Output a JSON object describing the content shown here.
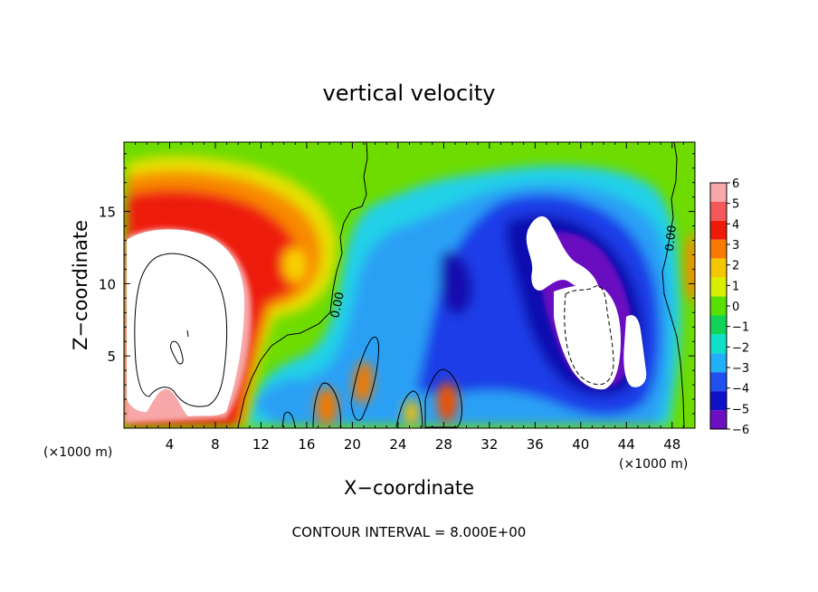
{
  "chart_data": {
    "type": "heatmap",
    "title": "vertical velocity",
    "xlabel": "X−coordinate",
    "ylabel": "Z−coordinate",
    "x_unit_label": "(×1000 m)",
    "y_unit_label": "(×1000 m)",
    "xlim": [
      0,
      50
    ],
    "ylim": [
      0,
      19.8
    ],
    "x_ticks": [
      4,
      8,
      12,
      16,
      20,
      24,
      28,
      32,
      36,
      40,
      44,
      48
    ],
    "x_tick_labels": [
      "4",
      "8",
      "12",
      "16",
      "20",
      "24",
      "28",
      "32",
      "36",
      "40",
      "44",
      "48"
    ],
    "y_ticks": [
      5,
      10,
      15
    ],
    "y_tick_labels": [
      "5",
      "10",
      "15"
    ],
    "note": "CONTOUR INTERVAL = 8.000E+00",
    "zero_contour_label": "0.00",
    "colorbar": {
      "levels": [
        6,
        5,
        4,
        3,
        2,
        1,
        0,
        -1,
        -2,
        -3,
        -4,
        -5,
        -6
      ],
      "labels": [
        "6",
        "5",
        "4",
        "3",
        "2",
        "1",
        "0",
        "−1",
        "−2",
        "−3",
        "−4",
        "−5",
        "−6"
      ],
      "colors": [
        "#f8a8a8",
        "#f45858",
        "#ee1a0a",
        "#fa7a00",
        "#f4c800",
        "#d8f000",
        "#58e000",
        "#10d458",
        "#10e0c8",
        "#20b0f8",
        "#2050f0",
        "#1010c8",
        "#6a10c0"
      ]
    },
    "background_color": "#6edc00",
    "features": [
      {
        "name": "updraft core",
        "sign": "positive",
        "x_range": [
          0.5,
          10.5
        ],
        "z_range": [
          0.5,
          17
        ]
      },
      {
        "name": "upper anvil updraft",
        "sign": "positive",
        "x_range": [
          10,
          20
        ],
        "z_range": [
          7,
          16
        ]
      },
      {
        "name": "low-level cell",
        "sign": "positive",
        "x": 17.5,
        "z": 1.5
      },
      {
        "name": "low-level cell",
        "sign": "positive",
        "x": 21,
        "z": 3
      },
      {
        "name": "low-level cell",
        "sign": "positive",
        "x": 25.5,
        "z": 1.3
      },
      {
        "name": "low-level cell",
        "sign": "positive",
        "x": 28.5,
        "z": 1.5
      },
      {
        "name": "downdraft region",
        "sign": "negative",
        "x_range": [
          13,
          48
        ],
        "z_range": [
          0.5,
          18
        ]
      },
      {
        "name": "strong downdraft core",
        "sign": "negative",
        "x_range": [
          35,
          46
        ],
        "z_range": [
          3,
          15
        ]
      },
      {
        "name": "right-edge updraft",
        "sign": "positive",
        "x": 49.8,
        "z": 11
      }
    ]
  }
}
